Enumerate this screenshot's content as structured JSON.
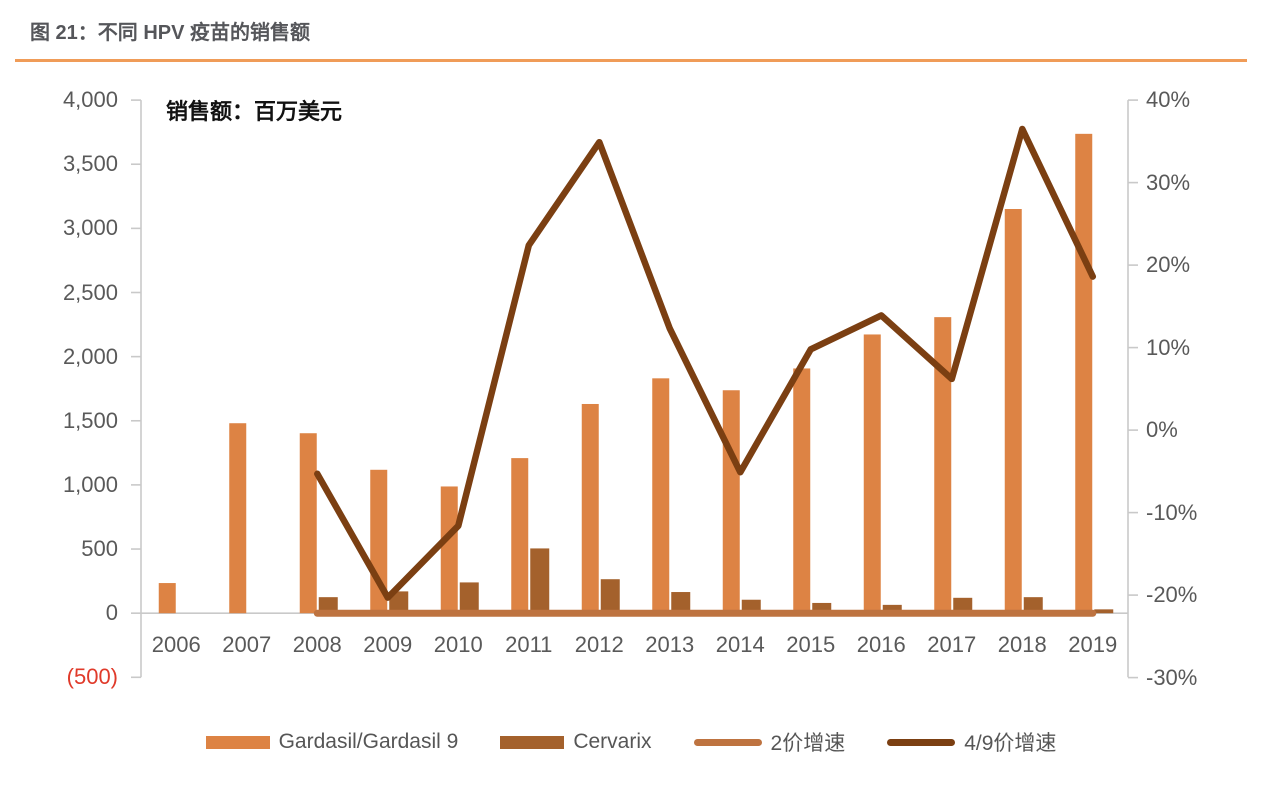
{
  "header": {
    "title": "图 21：不同 HPV 疫苗的销售额",
    "rule_color": "#F09C58"
  },
  "chart_data": {
    "type": "combo-bar-line",
    "title": "图 21：不同 HPV 疫苗的销售额",
    "unit_note": "销售额：百万美元",
    "categories": [
      "2006",
      "2007",
      "2008",
      "2009",
      "2010",
      "2011",
      "2012",
      "2013",
      "2014",
      "2015",
      "2016",
      "2017",
      "2018",
      "2019"
    ],
    "bar_series": [
      {
        "name": "Gardasil/Gardasil 9",
        "color": "#DD8344",
        "axis": "left",
        "values": [
          235,
          1481,
          1403,
          1118,
          988,
          1209,
          1631,
          1831,
          1738,
          1908,
          2173,
          2308,
          3151,
          3737
        ]
      },
      {
        "name": "Cervarix",
        "color": "#A4612C",
        "axis": "left",
        "values": [
          null,
          null,
          125,
          170,
          240,
          505,
          265,
          165,
          105,
          80,
          65,
          120,
          125,
          30
        ]
      }
    ],
    "line_series": [
      {
        "name": "2价增速",
        "color": "#BE7340",
        "axis": "right",
        "appearance": "flat line hugging the zero baseline, 2008-2019",
        "values_pct": [
          null,
          null,
          -22.2,
          -22.2,
          -22.2,
          -22.2,
          -22.2,
          -22.2,
          -22.2,
          -22.2,
          -22.2,
          -22.2,
          -22.2,
          -22.2
        ]
      },
      {
        "name": "4/9价增速",
        "color": "#7B3F12",
        "axis": "right",
        "values_pct": [
          null,
          null,
          -5.3,
          -20.3,
          -11.6,
          22.4,
          34.9,
          12.3,
          -5.1,
          9.8,
          13.9,
          6.2,
          36.5,
          18.6
        ]
      }
    ],
    "left_axis": {
      "min": -500,
      "max": 4000,
      "tick_step": 500,
      "ticks": [
        "4,000",
        "3,500",
        "3,000",
        "2,500",
        "2,000",
        "1,500",
        "1,000",
        "500",
        "0",
        "(500)"
      ],
      "negative_tick_color": "#E03A2A"
    },
    "right_axis": {
      "min": -30,
      "max": 40,
      "tick_step": 10,
      "ticks": [
        "40%",
        "30%",
        "20%",
        "10%",
        "0%",
        "-10%",
        "-20%",
        "-30%"
      ]
    },
    "axis_line_color": "#C9C9C9",
    "label_color": "#595959",
    "gridlines": false,
    "legend_position": "bottom"
  }
}
